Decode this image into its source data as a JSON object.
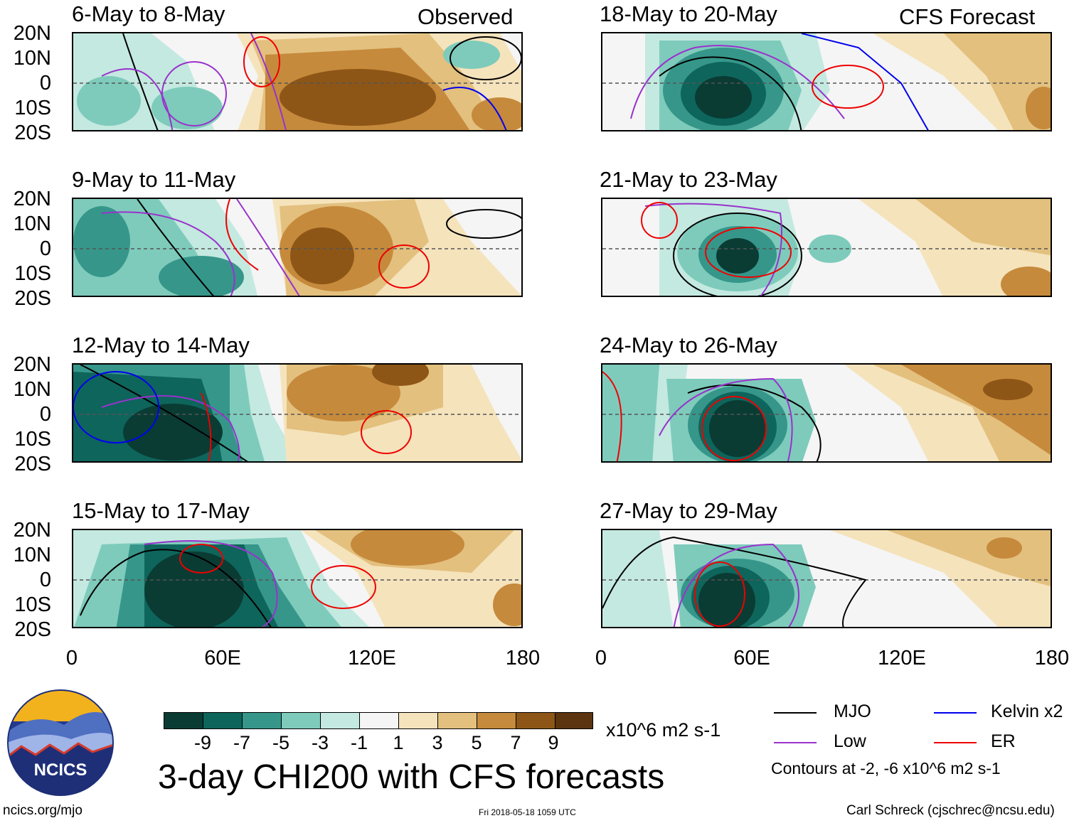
{
  "header": {
    "observed": "Observed",
    "forecast": "CFS Forecast"
  },
  "panels": [
    {
      "title": "6-May to 8-May"
    },
    {
      "title": "9-May to 11-May"
    },
    {
      "title": "12-May to 14-May"
    },
    {
      "title": "15-May to 17-May"
    },
    {
      "title": "18-May to 20-May"
    },
    {
      "title": "21-May to 23-May"
    },
    {
      "title": "24-May to 26-May"
    },
    {
      "title": "27-May to 29-May"
    }
  ],
  "axes": {
    "lat_labels": [
      "20N",
      "10N",
      "0",
      "10S",
      "20S"
    ],
    "lon_labels": [
      "0",
      "60E",
      "120E",
      "180"
    ],
    "lat_range": [
      -20,
      20
    ],
    "lon_range": [
      0,
      180
    ]
  },
  "colorbar": {
    "ticks": [
      "-9",
      "-7",
      "-5",
      "-3",
      "-1",
      "1",
      "3",
      "5",
      "7",
      "9"
    ],
    "units": "x10^6 m2 s-1",
    "colors": [
      "#0a3c34",
      "#0e655c",
      "#36968a",
      "#7ecbbc",
      "#c4e9e0",
      "#f5f5f5",
      "#f5e3bc",
      "#e3c07e",
      "#c68a3c",
      "#8e5616",
      "#5c3410"
    ]
  },
  "title": "3-day CHI200 with CFS forecasts",
  "legend": {
    "items": [
      {
        "label": "MJO",
        "color": "#000000"
      },
      {
        "label": "Kelvin x2",
        "color": "#0000ee"
      },
      {
        "label": "Low",
        "color": "#9932cc"
      },
      {
        "label": "ER",
        "color": "#ee0000"
      }
    ],
    "contour_note": "Contours at -2, -6 x10^6 m2 s-1"
  },
  "logo": {
    "text": "NCICS"
  },
  "footer": {
    "url": "ncics.org/mjo",
    "timestamp": "Fri 2018-05-18 1059 UTC",
    "credit": "Carl Schreck (cjschrec@ncsu.edu)"
  }
}
